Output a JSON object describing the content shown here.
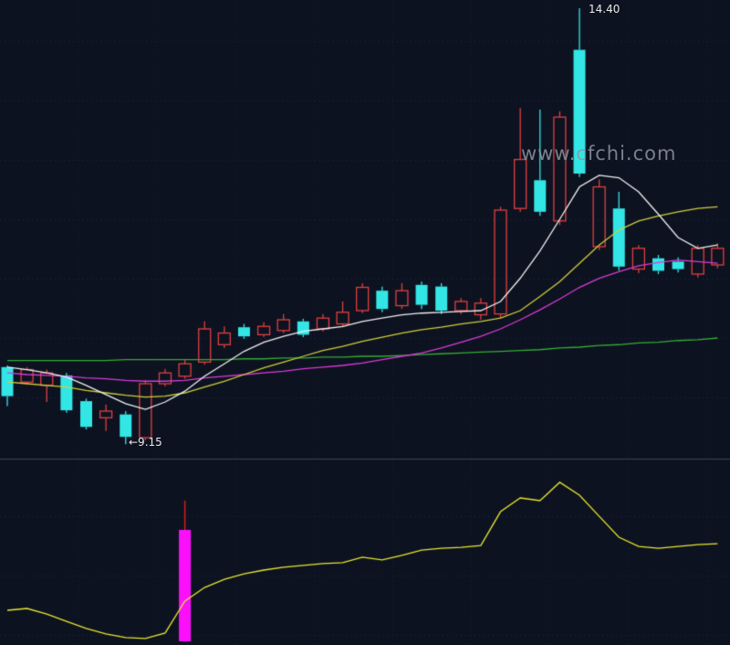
{
  "watermark": {
    "text": "www.cfchi.com",
    "color": "#8e959e"
  },
  "chart_data": {
    "type": "candlestick",
    "title": "",
    "price_range": [
      9.0,
      14.5
    ],
    "grid": true,
    "high_annotation": {
      "index": 29,
      "price": 14.4,
      "label": "14.40"
    },
    "low_annotation": {
      "index": 6,
      "price": 9.15,
      "label": "←9.15"
    },
    "colors": {
      "background": "#0d1220",
      "grid": "#22335c",
      "divider": "#3e4557",
      "up": "#e04040",
      "down": "#33e6e6"
    },
    "candles": [
      {
        "o": 10.08,
        "h": 10.1,
        "l": 9.61,
        "c": 9.73
      },
      {
        "o": 9.9,
        "h": 10.08,
        "l": 9.87,
        "c": 10.05
      },
      {
        "o": 9.86,
        "h": 10.05,
        "l": 9.66,
        "c": 10.01
      },
      {
        "o": 9.98,
        "h": 10.01,
        "l": 9.53,
        "c": 9.56
      },
      {
        "o": 9.67,
        "h": 9.7,
        "l": 9.33,
        "c": 9.36
      },
      {
        "o": 9.47,
        "h": 9.63,
        "l": 9.31,
        "c": 9.55
      },
      {
        "o": 9.51,
        "h": 9.55,
        "l": 9.15,
        "c": 9.24
      },
      {
        "o": 9.23,
        "h": 9.92,
        "l": 9.2,
        "c": 9.88
      },
      {
        "o": 9.88,
        "h": 10.06,
        "l": 9.85,
        "c": 10.01
      },
      {
        "o": 9.97,
        "h": 10.17,
        "l": 9.94,
        "c": 10.12
      },
      {
        "o": 10.14,
        "h": 10.63,
        "l": 10.11,
        "c": 10.54
      },
      {
        "o": 10.35,
        "h": 10.57,
        "l": 10.31,
        "c": 10.49
      },
      {
        "o": 10.56,
        "h": 10.6,
        "l": 10.42,
        "c": 10.45
      },
      {
        "o": 10.47,
        "h": 10.62,
        "l": 10.44,
        "c": 10.57
      },
      {
        "o": 10.52,
        "h": 10.72,
        "l": 10.49,
        "c": 10.65
      },
      {
        "o": 10.63,
        "h": 10.66,
        "l": 10.44,
        "c": 10.47
      },
      {
        "o": 10.54,
        "h": 10.72,
        "l": 10.51,
        "c": 10.67
      },
      {
        "o": 10.6,
        "h": 10.87,
        "l": 10.56,
        "c": 10.74
      },
      {
        "o": 10.76,
        "h": 11.09,
        "l": 10.73,
        "c": 11.04
      },
      {
        "o": 11.0,
        "h": 11.05,
        "l": 10.74,
        "c": 10.78
      },
      {
        "o": 10.82,
        "h": 11.09,
        "l": 10.78,
        "c": 11.0
      },
      {
        "o": 11.07,
        "h": 11.11,
        "l": 10.78,
        "c": 10.83
      },
      {
        "o": 11.05,
        "h": 11.09,
        "l": 10.72,
        "c": 10.76
      },
      {
        "o": 10.76,
        "h": 10.91,
        "l": 10.72,
        "c": 10.87
      },
      {
        "o": 10.71,
        "h": 10.91,
        "l": 10.65,
        "c": 10.85
      },
      {
        "o": 10.72,
        "h": 12.01,
        "l": 10.67,
        "c": 11.97
      },
      {
        "o": 11.99,
        "h": 13.2,
        "l": 11.95,
        "c": 12.58
      },
      {
        "o": 12.33,
        "h": 13.18,
        "l": 11.9,
        "c": 11.95
      },
      {
        "o": 11.84,
        "h": 13.16,
        "l": 11.79,
        "c": 13.09
      },
      {
        "o": 13.9,
        "h": 14.4,
        "l": 12.37,
        "c": 12.41
      },
      {
        "o": 11.53,
        "h": 12.34,
        "l": 11.49,
        "c": 12.25
      },
      {
        "o": 11.99,
        "h": 12.19,
        "l": 11.24,
        "c": 11.29
      },
      {
        "o": 11.26,
        "h": 11.55,
        "l": 11.21,
        "c": 11.51
      },
      {
        "o": 11.39,
        "h": 11.43,
        "l": 11.2,
        "c": 11.24
      },
      {
        "o": 11.35,
        "h": 11.4,
        "l": 11.22,
        "c": 11.26
      },
      {
        "o": 11.2,
        "h": 11.55,
        "l": 11.16,
        "c": 11.51
      },
      {
        "o": 11.31,
        "h": 11.57,
        "l": 11.27,
        "c": 11.51
      }
    ],
    "moving_averages": [
      {
        "name": "ma-green",
        "color": "#33ad33",
        "values": [
          10.16,
          10.16,
          10.16,
          10.16,
          10.16,
          10.16,
          10.17,
          10.17,
          10.17,
          10.17,
          10.17,
          10.17,
          10.18,
          10.18,
          10.19,
          10.19,
          10.2,
          10.2,
          10.21,
          10.21,
          10.22,
          10.23,
          10.24,
          10.25,
          10.26,
          10.27,
          10.28,
          10.29,
          10.31,
          10.32,
          10.34,
          10.35,
          10.37,
          10.38,
          10.4,
          10.41,
          10.43
        ]
      },
      {
        "name": "ma-magenta",
        "color": "#d83cd8",
        "values": [
          10.01,
          9.99,
          9.98,
          9.97,
          9.95,
          9.94,
          9.92,
          9.91,
          9.91,
          9.92,
          9.95,
          9.97,
          9.99,
          10.01,
          10.03,
          10.06,
          10.08,
          10.1,
          10.13,
          10.17,
          10.21,
          10.25,
          10.31,
          10.38,
          10.45,
          10.54,
          10.65,
          10.77,
          10.9,
          11.04,
          11.15,
          11.23,
          11.3,
          11.34,
          11.37,
          11.35,
          11.33
        ]
      },
      {
        "name": "ma-yellow",
        "color": "#cfcf3a",
        "values": [
          9.9,
          9.88,
          9.86,
          9.84,
          9.8,
          9.77,
          9.74,
          9.72,
          9.73,
          9.77,
          9.84,
          9.91,
          9.99,
          10.07,
          10.14,
          10.21,
          10.28,
          10.33,
          10.39,
          10.44,
          10.49,
          10.53,
          10.56,
          10.6,
          10.63,
          10.67,
          10.76,
          10.93,
          11.11,
          11.33,
          11.55,
          11.73,
          11.84,
          11.9,
          11.95,
          11.99,
          12.01
        ]
      },
      {
        "name": "ma-white",
        "color": "#f0f0f0",
        "values": [
          10.08,
          10.05,
          10.01,
          9.96,
          9.86,
          9.75,
          9.64,
          9.57,
          9.66,
          9.79,
          9.97,
          10.12,
          10.27,
          10.38,
          10.45,
          10.51,
          10.54,
          10.57,
          10.63,
          10.67,
          10.71,
          10.73,
          10.74,
          10.75,
          10.76,
          10.87,
          11.15,
          11.48,
          11.86,
          12.25,
          12.39,
          12.36,
          12.19,
          11.92,
          11.64,
          11.51,
          11.55
        ]
      }
    ],
    "sub_chart": {
      "type": "line+bar",
      "value_range": [
        0,
        100
      ],
      "line": {
        "color": "#e6e62e",
        "values": [
          18.9,
          19.9,
          16.9,
          12.9,
          9.0,
          6.0,
          4.0,
          3.5,
          6.5,
          23.9,
          31.3,
          35.8,
          38.8,
          40.8,
          42.3,
          43.3,
          44.3,
          44.8,
          47.8,
          46.3,
          48.8,
          51.7,
          52.7,
          53.2,
          54.2,
          72.6,
          80.1,
          78.6,
          88.6,
          81.6,
          70.1,
          58.7,
          53.7,
          52.7,
          53.7,
          54.7,
          55.2
        ]
      },
      "bar": {
        "index": 9,
        "value": 62.7,
        "spike_value": 78.6,
        "color": "#fa10fa",
        "spike_color": "#cf1f1f"
      }
    }
  }
}
